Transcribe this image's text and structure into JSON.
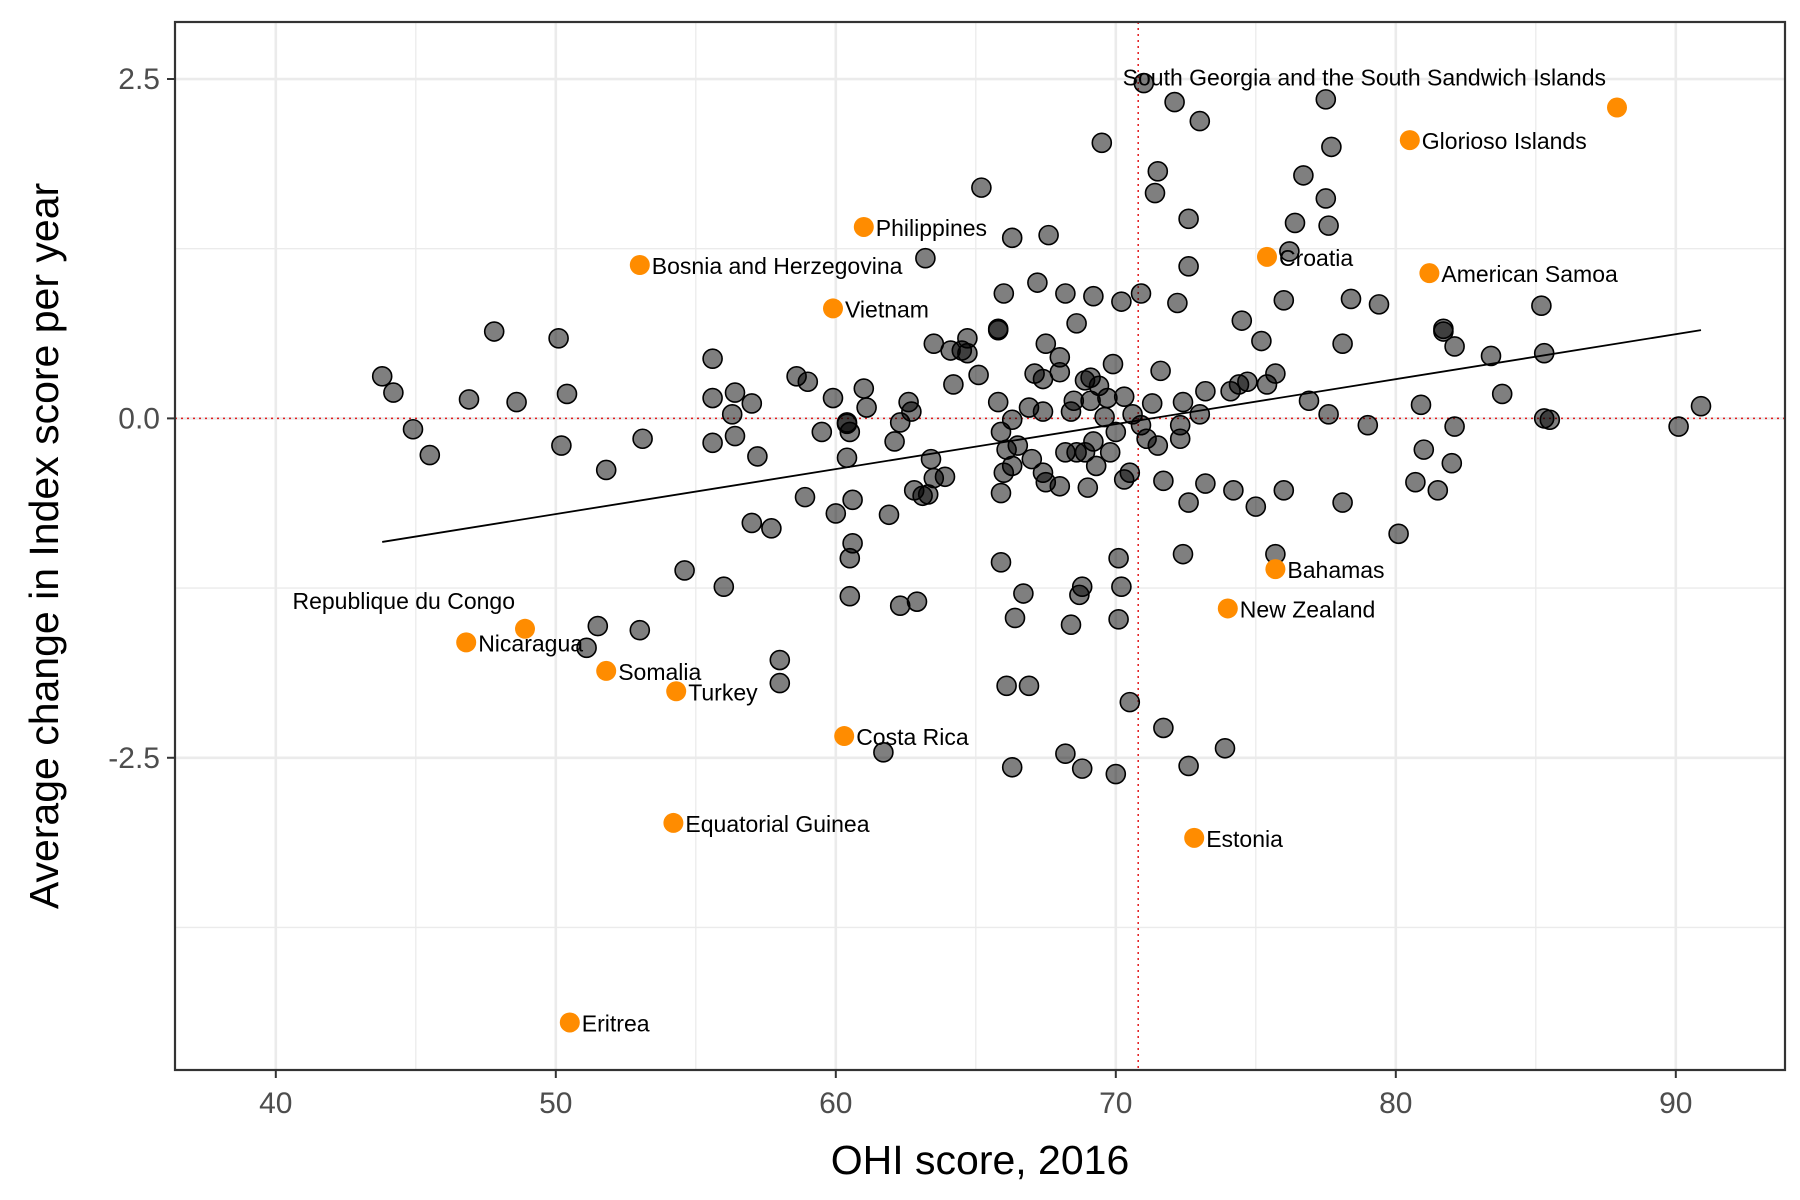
{
  "chart_data": {
    "type": "scatter",
    "xlabel": "OHI score, 2016",
    "ylabel": "Average change in Index score per year",
    "xlim": [
      36.4,
      93.9
    ],
    "ylim": [
      -4.8,
      2.92
    ],
    "x_ticks": [
      40,
      50,
      60,
      70,
      80,
      90
    ],
    "x_tick_labels": [
      "40",
      "50",
      "60",
      "70",
      "80",
      "90"
    ],
    "y_ticks": [
      2.5,
      0.0,
      -2.5
    ],
    "y_tick_labels": [
      "2.5",
      "0.0",
      "-2.5"
    ],
    "y_grid_minor": [
      1.25,
      -1.25,
      -3.75
    ],
    "x_grid_minor": [
      45,
      55,
      65,
      75,
      85
    ],
    "grid": true,
    "reference_lines": {
      "x": 70.8,
      "y": 0.0,
      "color": "#e41a1c"
    },
    "trend_line": {
      "x": [
        43.8,
        90.9
      ],
      "y": [
        -0.91,
        0.65
      ]
    },
    "colors": {
      "gray_point": "#000000",
      "highlight_point": "#ff8c00",
      "panel_border": "#333333",
      "grid": "#ebebeb"
    },
    "gray_points": [
      [
        43.8,
        0.31
      ],
      [
        44.2,
        0.19
      ],
      [
        44.9,
        -0.08
      ],
      [
        45.5,
        -0.27
      ],
      [
        46.9,
        0.14
      ],
      [
        47.8,
        0.64
      ],
      [
        48.6,
        0.12
      ],
      [
        50.1,
        0.59
      ],
      [
        50.4,
        0.18
      ],
      [
        50.2,
        -0.2
      ],
      [
        51.8,
        -0.38
      ],
      [
        53.1,
        -0.15
      ],
      [
        51.1,
        -1.69
      ],
      [
        51.5,
        -1.53
      ],
      [
        53.0,
        -1.56
      ],
      [
        54.6,
        -1.12
      ],
      [
        55.6,
        0.44
      ],
      [
        55.6,
        0.15
      ],
      [
        55.6,
        -0.18
      ],
      [
        56.0,
        -1.24
      ],
      [
        56.3,
        0.03
      ],
      [
        56.4,
        0.19
      ],
      [
        56.4,
        -0.13
      ],
      [
        57.0,
        0.11
      ],
      [
        57.2,
        -0.28
      ],
      [
        57.0,
        -0.77
      ],
      [
        57.7,
        -0.81
      ],
      [
        58.0,
        -1.78
      ],
      [
        58.0,
        -1.95
      ],
      [
        58.6,
        0.31
      ],
      [
        59.0,
        0.27
      ],
      [
        58.9,
        -0.58
      ],
      [
        59.5,
        -0.1
      ],
      [
        59.9,
        0.15
      ],
      [
        60.0,
        -0.7
      ],
      [
        60.4,
        -0.03
      ],
      [
        60.4,
        -0.04
      ],
      [
        60.5,
        -0.1
      ],
      [
        60.4,
        -0.29
      ],
      [
        60.6,
        -0.6
      ],
      [
        60.6,
        -0.92
      ],
      [
        60.5,
        -1.03
      ],
      [
        60.5,
        -1.31
      ],
      [
        61.0,
        0.22
      ],
      [
        61.1,
        0.08
      ],
      [
        61.9,
        -0.71
      ],
      [
        62.1,
        -0.17
      ],
      [
        62.3,
        -0.03
      ],
      [
        62.3,
        -1.38
      ],
      [
        62.7,
        0.05
      ],
      [
        62.8,
        -0.53
      ],
      [
        62.9,
        -1.35
      ],
      [
        63.1,
        -0.57
      ],
      [
        63.2,
        1.18
      ],
      [
        63.3,
        -0.56
      ],
      [
        63.4,
        -0.3
      ],
      [
        63.5,
        0.55
      ],
      [
        63.5,
        -0.44
      ],
      [
        63.9,
        -0.43
      ],
      [
        64.1,
        0.5
      ],
      [
        64.2,
        0.25
      ],
      [
        64.5,
        0.5
      ],
      [
        64.7,
        0.48
      ],
      [
        64.7,
        0.59
      ],
      [
        65.1,
        0.32
      ],
      [
        65.2,
        1.7
      ],
      [
        65.8,
        0.12
      ],
      [
        65.8,
        0.65
      ],
      [
        65.8,
        0.66
      ],
      [
        65.9,
        -0.1
      ],
      [
        65.9,
        -0.55
      ],
      [
        65.9,
        -1.06
      ],
      [
        66.0,
        0.92
      ],
      [
        66.1,
        -0.23
      ],
      [
        66.1,
        -1.97
      ],
      [
        66.3,
        -2.57
      ],
      [
        66.3,
        1.33
      ],
      [
        66.3,
        -0.01
      ],
      [
        66.3,
        -0.35
      ],
      [
        66.4,
        -1.47
      ],
      [
        66.5,
        -0.2
      ],
      [
        66.7,
        -1.29
      ],
      [
        66.9,
        0.08
      ],
      [
        66.9,
        -1.97
      ],
      [
        67.0,
        -0.3
      ],
      [
        67.1,
        0.33
      ],
      [
        67.2,
        1.0
      ],
      [
        67.4,
        0.05
      ],
      [
        67.4,
        0.29
      ],
      [
        67.4,
        -0.4
      ],
      [
        67.5,
        -0.47
      ],
      [
        67.5,
        0.55
      ],
      [
        67.6,
        1.35
      ],
      [
        68.0,
        0.34
      ],
      [
        68.0,
        0.45
      ],
      [
        68.0,
        -0.5
      ],
      [
        68.2,
        0.92
      ],
      [
        68.2,
        -0.25
      ],
      [
        68.2,
        -2.47
      ],
      [
        68.4,
        -1.52
      ],
      [
        68.5,
        0.13
      ],
      [
        68.6,
        0.7
      ],
      [
        68.6,
        -0.25
      ],
      [
        68.7,
        -1.3
      ],
      [
        68.8,
        -1.24
      ],
      [
        68.8,
        -2.58
      ],
      [
        68.9,
        0.28
      ],
      [
        68.9,
        -0.25
      ],
      [
        69.0,
        -0.51
      ],
      [
        69.1,
        0.3
      ],
      [
        69.1,
        0.13
      ],
      [
        69.2,
        -0.17
      ],
      [
        69.3,
        -0.35
      ],
      [
        69.4,
        0.24
      ],
      [
        69.5,
        2.03
      ],
      [
        69.6,
        0.01
      ],
      [
        69.7,
        0.15
      ],
      [
        69.8,
        -0.25
      ],
      [
        69.9,
        0.4
      ],
      [
        70.0,
        -0.1
      ],
      [
        70.1,
        -1.03
      ],
      [
        70.1,
        -1.48
      ],
      [
        70.2,
        -1.24
      ],
      [
        70.2,
        0.86
      ],
      [
        70.3,
        0.16
      ],
      [
        70.3,
        -0.45
      ],
      [
        70.5,
        -0.4
      ],
      [
        70.5,
        -2.09
      ],
      [
        70.6,
        0.03
      ],
      [
        70.9,
        0.92
      ],
      [
        71.0,
        2.47
      ],
      [
        71.1,
        -0.15
      ],
      [
        71.3,
        0.11
      ],
      [
        71.4,
        1.66
      ],
      [
        71.5,
        1.82
      ],
      [
        71.5,
        -0.2
      ],
      [
        71.6,
        0.35
      ],
      [
        71.7,
        -2.28
      ],
      [
        71.7,
        -0.46
      ],
      [
        72.1,
        2.33
      ],
      [
        72.2,
        0.85
      ],
      [
        72.3,
        -0.15
      ],
      [
        72.3,
        -0.05
      ],
      [
        72.4,
        0.12
      ],
      [
        72.4,
        -1.0
      ],
      [
        72.6,
        1.12
      ],
      [
        72.6,
        1.47
      ],
      [
        72.6,
        -0.62
      ],
      [
        72.6,
        -2.56
      ],
      [
        73.0,
        2.19
      ],
      [
        73.0,
        0.03
      ],
      [
        73.2,
        0.2
      ],
      [
        73.2,
        -0.48
      ],
      [
        74.1,
        0.2
      ],
      [
        74.2,
        -0.53
      ],
      [
        74.4,
        0.25
      ],
      [
        74.5,
        0.72
      ],
      [
        74.7,
        0.27
      ],
      [
        75.0,
        -0.65
      ],
      [
        75.2,
        0.57
      ],
      [
        75.4,
        0.25
      ],
      [
        75.7,
        0.33
      ],
      [
        75.7,
        -1.0
      ],
      [
        76.0,
        0.87
      ],
      [
        76.0,
        -0.53
      ],
      [
        76.2,
        1.23
      ],
      [
        76.4,
        1.44
      ],
      [
        76.7,
        1.79
      ],
      [
        76.9,
        0.13
      ],
      [
        77.5,
        2.35
      ],
      [
        77.5,
        1.62
      ],
      [
        77.6,
        0.03
      ],
      [
        77.6,
        1.42
      ],
      [
        77.7,
        2.0
      ],
      [
        78.1,
        0.55
      ],
      [
        78.1,
        -0.62
      ],
      [
        78.4,
        0.88
      ],
      [
        79.0,
        -0.05
      ],
      [
        79.4,
        0.84
      ],
      [
        80.1,
        -0.85
      ],
      [
        80.7,
        -0.47
      ],
      [
        80.9,
        0.1
      ],
      [
        81.0,
        -0.23
      ],
      [
        81.5,
        -0.53
      ],
      [
        81.7,
        0.66
      ],
      [
        81.7,
        0.64
      ],
      [
        82.0,
        -0.33
      ],
      [
        82.1,
        -0.06
      ],
      [
        82.1,
        0.53
      ],
      [
        83.4,
        0.46
      ],
      [
        83.8,
        0.18
      ],
      [
        85.2,
        0.83
      ],
      [
        85.3,
        0.48
      ],
      [
        85.3,
        0.0
      ],
      [
        85.5,
        -0.01
      ],
      [
        90.1,
        -0.06
      ],
      [
        90.9,
        0.09
      ],
      [
        73.9,
        -2.43
      ],
      [
        61.7,
        -2.46
      ],
      [
        70.0,
        -2.62
      ],
      [
        66.0,
        -0.4
      ],
      [
        68.4,
        0.05
      ],
      [
        62.6,
        0.12
      ],
      [
        69.2,
        0.9
      ],
      [
        70.9,
        -0.05
      ]
    ],
    "highlight_points": [
      {
        "label": "South Georgia and the South Sandwich Islands",
        "x": 87.9,
        "y": 2.29
      },
      {
        "label": "Glorioso Islands",
        "x": 80.5,
        "y": 2.05
      },
      {
        "label": "Philippines",
        "x": 61.0,
        "y": 1.41
      },
      {
        "label": "Bosnia and Herzegovina",
        "x": 53.0,
        "y": 1.13
      },
      {
        "label": "Croatia",
        "x": 75.4,
        "y": 1.19
      },
      {
        "label": "American Samoa",
        "x": 81.2,
        "y": 1.07
      },
      {
        "label": "Vietnam",
        "x": 59.9,
        "y": 0.81
      },
      {
        "label": "Bahamas",
        "x": 75.7,
        "y": -1.11
      },
      {
        "label": "New Zealand",
        "x": 74.0,
        "y": -1.4
      },
      {
        "label": "Republique du Congo",
        "x": 48.9,
        "y": -1.55
      },
      {
        "label": "Nicaragua",
        "x": 46.8,
        "y": -1.65
      },
      {
        "label": "Somalia",
        "x": 51.8,
        "y": -1.86
      },
      {
        "label": "Turkey",
        "x": 54.3,
        "y": -2.01
      },
      {
        "label": "Costa Rica",
        "x": 60.3,
        "y": -2.34
      },
      {
        "label": "Equatorial Guinea",
        "x": 54.2,
        "y": -2.98
      },
      {
        "label": "Estonia",
        "x": 72.8,
        "y": -3.09
      },
      {
        "label": "Eritrea",
        "x": 50.5,
        "y": -4.45
      }
    ]
  }
}
